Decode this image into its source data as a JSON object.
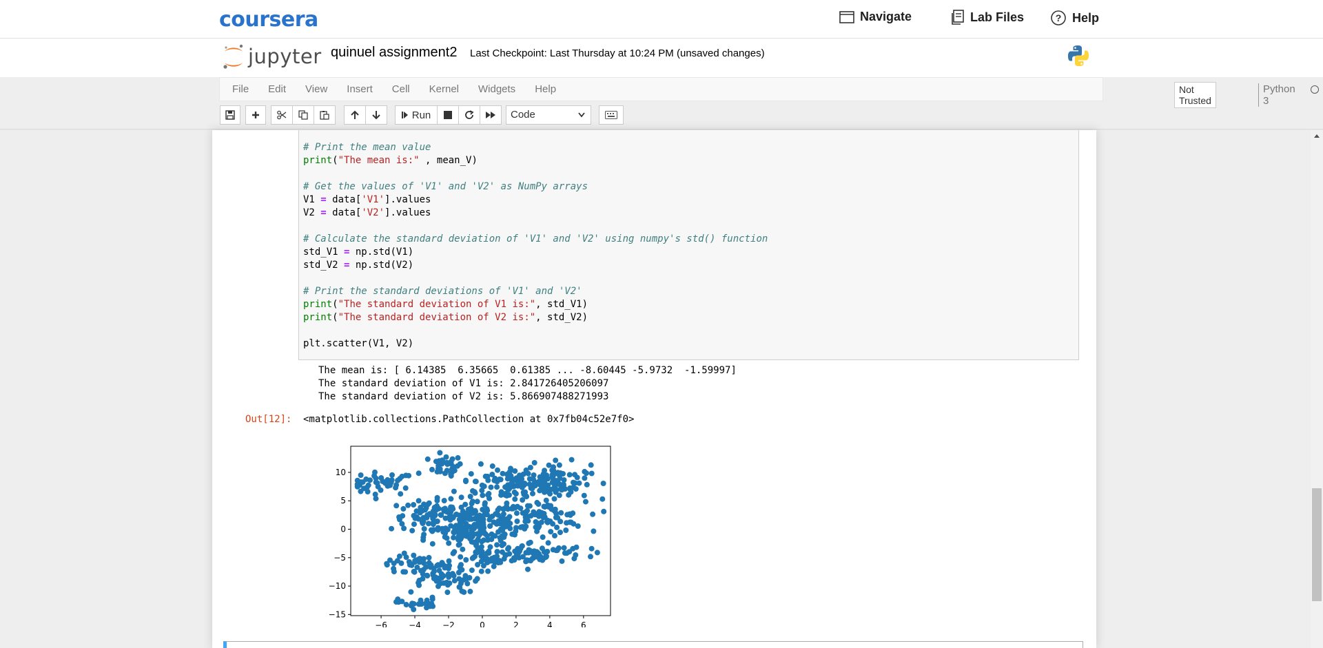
{
  "coursera": {
    "logo": "coursera",
    "nav": [
      {
        "label": "Navigate",
        "icon": "browser-window-icon"
      },
      {
        "label": "Lab Files",
        "icon": "files-icon"
      },
      {
        "label": "Help",
        "icon": "help-circle-icon"
      }
    ]
  },
  "jupyter": {
    "logo_text": "jupyter",
    "notebook_name": "quinuel assignment2",
    "checkpoint": "Last Checkpoint: Last Thursday at 10:24 PM",
    "unsaved": "(unsaved changes)",
    "menu": [
      "File",
      "Edit",
      "View",
      "Insert",
      "Cell",
      "Kernel",
      "Widgets",
      "Help"
    ],
    "trust": "Not Trusted",
    "kernel": "Python 3",
    "toolbar": {
      "run_label": "Run",
      "cell_type": "Code"
    }
  },
  "cell": {
    "code": [
      "# Print the mean value",
      "print(\"The mean is:\" , mean_V)",
      "",
      "# Get the values of 'V1' and 'V2' as NumPy arrays",
      "V1 = data['V1'].values",
      "V2 = data['V2'].values",
      "",
      "# Calculate the standard deviation of 'V1' and 'V2' using numpy's std() function",
      "std_V1 = np.std(V1)",
      "std_V2 = np.std(V2)",
      "",
      "# Print the standard deviations of 'V1' and 'V2'",
      "print(\"The standard deviation of V1 is:\", std_V1)",
      "print(\"The standard deviation of V2 is:\", std_V2)",
      "",
      "plt.scatter(V1, V2)"
    ],
    "stdout": [
      "The mean is: [ 6.14385  6.35665  0.61385 ... -8.60445 -5.9732  -1.59997]",
      "The standard deviation of V1 is: 2.841726405206097",
      "The standard deviation of V2 is: 5.866907488271993"
    ],
    "out_prompt": "Out[12]:",
    "out_repr": "<matplotlib.collections.PathCollection at 0x7fb04c52e7f0>"
  },
  "chart_data": {
    "type": "scatter",
    "xlim": [
      -7.8,
      7.6
    ],
    "ylim": [
      -15.2,
      14.6
    ],
    "xticks": [
      -6,
      -4,
      -2,
      0,
      2,
      4,
      6
    ],
    "yticks": [
      10,
      5,
      0,
      -5,
      -10,
      -15
    ],
    "color": "#1f77b4",
    "grid": false,
    "clusters": [
      {
        "cx": -6.0,
        "cy": 8.0,
        "sx": 1.0,
        "sy": 1.0,
        "n": 45
      },
      {
        "cx": -2.2,
        "cy": 11.2,
        "sx": 0.5,
        "sy": 0.9,
        "n": 30
      },
      {
        "cx": 1.8,
        "cy": 8.0,
        "sx": 1.6,
        "sy": 1.6,
        "n": 120
      },
      {
        "cx": 4.4,
        "cy": 8.5,
        "sx": 1.0,
        "sy": 1.6,
        "n": 80
      },
      {
        "cx": -3.0,
        "cy": 2.5,
        "sx": 1.2,
        "sy": 1.3,
        "n": 80
      },
      {
        "cx": 0.0,
        "cy": 1.5,
        "sx": 1.3,
        "sy": 1.6,
        "n": 130
      },
      {
        "cx": 3.5,
        "cy": 2.0,
        "sx": 1.3,
        "sy": 1.4,
        "n": 90
      },
      {
        "cx": -1.0,
        "cy": -1.5,
        "sx": 1.2,
        "sy": 1.2,
        "n": 60
      },
      {
        "cx": 3.0,
        "cy": -4.2,
        "sx": 1.6,
        "sy": 1.0,
        "n": 80
      },
      {
        "cx": -2.5,
        "cy": -8.0,
        "sx": 1.2,
        "sy": 1.6,
        "n": 80
      },
      {
        "cx": -4.5,
        "cy": -6.0,
        "sx": 0.6,
        "sy": 1.0,
        "n": 25
      },
      {
        "cx": -3.8,
        "cy": -13.0,
        "sx": 0.6,
        "sy": 0.5,
        "n": 25
      },
      {
        "cx": 0.5,
        "cy": -5.0,
        "sx": 0.8,
        "sy": 1.0,
        "n": 35
      }
    ]
  }
}
